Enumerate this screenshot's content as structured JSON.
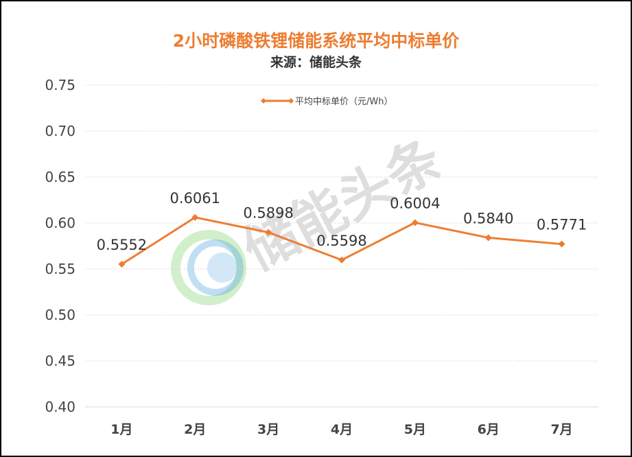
{
  "colors": {
    "title": "#ed7d31",
    "series": "#ed7d31",
    "grid": "#d9d9d9",
    "text": "#444444"
  },
  "watermark": "储能头条",
  "chart_data": {
    "type": "line",
    "title": "2小时磷酸铁锂储能系统平均中标单价",
    "subtitle": "来源：储能头条",
    "categories": [
      "1月",
      "2月",
      "3月",
      "4月",
      "5月",
      "6月",
      "7月"
    ],
    "series": [
      {
        "name": "平均中标单价（元/Wh）",
        "values": [
          0.5552,
          0.6061,
          0.5898,
          0.5598,
          0.6004,
          0.584,
          0.5771
        ],
        "data_labels": [
          "0.5552",
          "0.6061",
          "0.5898",
          "0.5598",
          "0.6004",
          "0.5840",
          "0.5771"
        ]
      }
    ],
    "ylim": [
      0.4,
      0.75
    ],
    "yticks": [
      "0.40",
      "0.45",
      "0.50",
      "0.55",
      "0.60",
      "0.65",
      "0.70",
      "0.75"
    ],
    "xlabel": "",
    "ylabel": "",
    "grid": true,
    "legend_position": "top-center"
  }
}
